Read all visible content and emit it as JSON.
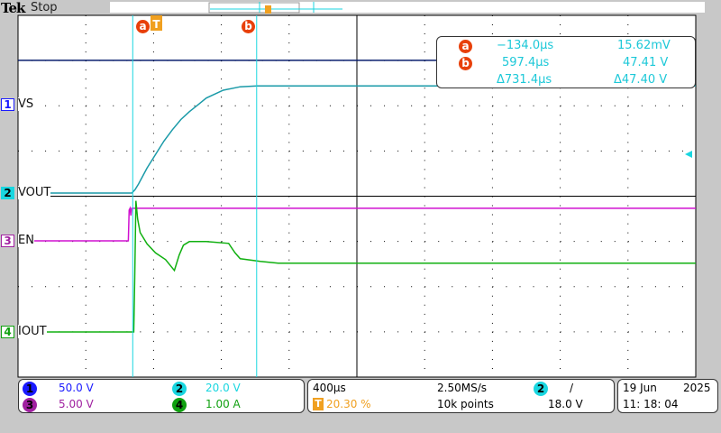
{
  "header": {
    "brand": "Tek",
    "state": "Stop"
  },
  "cursors": {
    "a": {
      "label": "a",
      "time": "−134.0µs",
      "value": "15.62mV"
    },
    "b": {
      "label": "b",
      "time": "597.4µs",
      "value": "47.41 V"
    },
    "delta": {
      "time": "Δ731.4µs",
      "value": "Δ47.40 V"
    }
  },
  "trigger_marker": "T",
  "channels": [
    {
      "num": "1",
      "name": "VS",
      "scale": "50.0 V",
      "color": "#1a1aff",
      "trace_color": "#0a1f6e"
    },
    {
      "num": "2",
      "name": "VOUT",
      "scale": "20.0 V",
      "color": "#19d6e0",
      "trace_color": "#1a9aa8"
    },
    {
      "num": "3",
      "name": "EN",
      "scale": "5.00 V",
      "color": "#a020a0",
      "trace_color": "#d010d0"
    },
    {
      "num": "4",
      "name": "IOUT",
      "scale": "1.00 A",
      "color": "#10a010",
      "trace_color": "#10b010"
    }
  ],
  "horizontal": {
    "time_per_div": "400µs",
    "sample_rate": "2.50MS/s",
    "trigger_pos": "20.30 %",
    "record_length": "10k points"
  },
  "trigger": {
    "source": "2",
    "slope": "/",
    "level": "18.0 V"
  },
  "datetime": {
    "date_day": "19 Jun",
    "date_year": "2025",
    "time": "11: 18: 04"
  },
  "chart_data": {
    "type": "line",
    "xlabel": "",
    "ylabel": "",
    "xlim_us": [
      -811,
      3189
    ],
    "grid": true,
    "divisions": {
      "x": 10,
      "y": 8
    },
    "time_per_div_us": 400,
    "cursor_times_us": [
      -134.0,
      597.4
    ],
    "series": [
      {
        "name": "VS",
        "unit": "V",
        "volts_per_div": 50,
        "x": [
          -811,
          3189
        ],
        "y": [
          49,
          49
        ]
      },
      {
        "name": "VOUT",
        "unit": "V",
        "volts_per_div": 20,
        "x": [
          -811,
          -139,
          -120,
          -100,
          -50,
          0,
          50,
          100,
          150,
          200,
          250,
          300,
          400,
          500,
          600,
          700,
          3189
        ],
        "y": [
          0,
          0,
          1.5,
          4,
          11,
          17,
          23,
          28,
          32.5,
          36,
          39,
          42,
          45.5,
          47,
          47.4,
          47.4,
          47.4
        ]
      },
      {
        "name": "EN",
        "unit": "V",
        "volts_per_div": 5,
        "x": [
          -811,
          -160,
          -155,
          -150,
          -145,
          -140,
          -130,
          3189
        ],
        "y": [
          0,
          0,
          3.4,
          3.6,
          2.8,
          3.6,
          3.6,
          3.6
        ]
      },
      {
        "name": "IOUT",
        "unit": "A",
        "volts_per_div": 1,
        "x": [
          -811,
          -128,
          -122,
          -115,
          -105,
          -90,
          -50,
          0,
          60,
          112,
          140,
          165,
          200,
          300,
          432,
          470,
          500,
          619,
          725,
          3189
        ],
        "y": [
          0,
          0,
          1.2,
          2.9,
          2.5,
          2.2,
          1.95,
          1.75,
          1.6,
          1.36,
          1.7,
          1.92,
          2.0,
          2.0,
          1.96,
          1.75,
          1.62,
          1.56,
          1.52,
          1.52
        ]
      }
    ]
  }
}
